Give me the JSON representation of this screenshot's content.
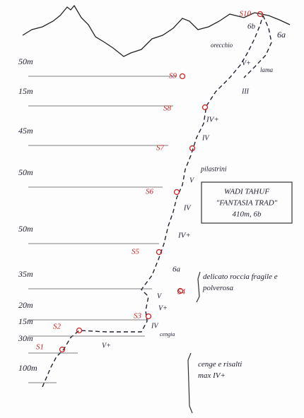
{
  "title_box": {
    "lines": [
      "WADI TAHUF",
      "\"FANTASIA TRAD\"",
      "410m, 6b"
    ]
  },
  "pitch_lengths": [
    "50m",
    "15m",
    "45m",
    "50m",
    "50m",
    "35m",
    "20m",
    "15m",
    "30m",
    "100m"
  ],
  "belays": [
    "S10",
    "S9",
    "S8",
    "S7",
    "S6",
    "S5",
    "S4",
    "S3",
    "S2",
    "S1"
  ],
  "route_labels": [
    "6a",
    "6b",
    "orecchio",
    "V+",
    "lama",
    "III",
    "IV+",
    "IV",
    "pilastrini",
    "V",
    "IV",
    "IV+",
    "6a",
    "V",
    "V+",
    "IV",
    "cengia",
    "V+"
  ],
  "notes": [
    "delicato roccia fragile e polverosa",
    "cenge e risalti max IV+"
  ]
}
